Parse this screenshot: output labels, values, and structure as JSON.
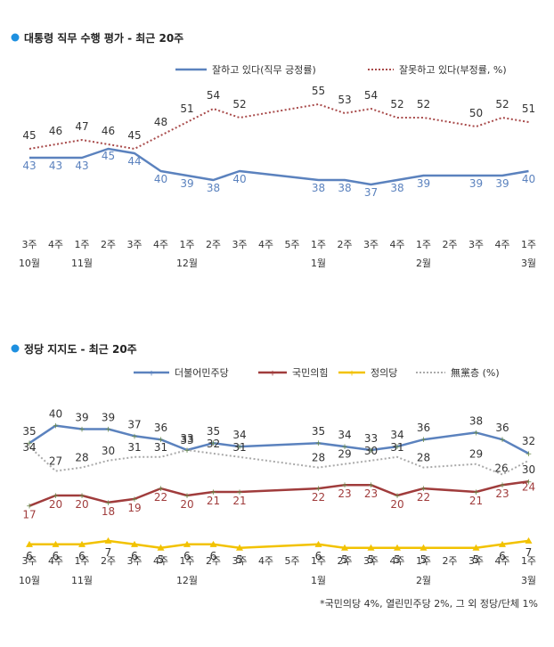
{
  "chart_data": [
    {
      "type": "line",
      "title": "대통령 직무 수행 평가 - 최근 20주",
      "x": [
        "3주 10월",
        "4주",
        "1주 11월",
        "2주",
        "3주",
        "4주",
        "1주 12월",
        "2주",
        "3주",
        "4주",
        "5주",
        "1주 1월",
        "2주",
        "3주",
        "4주",
        "1주 2월",
        "2주",
        "3주",
        "4주",
        "1주 3월"
      ],
      "tick_week": [
        "3주",
        "4주",
        "1주",
        "2주",
        "3주",
        "4주",
        "1주",
        "2주",
        "3주",
        "4주",
        "5주",
        "1주",
        "2주",
        "3주",
        "4주",
        "1주",
        "2주",
        "3주",
        "4주",
        "1주"
      ],
      "tick_month": [
        "10월",
        "",
        "11월",
        "",
        "",
        "",
        "12월",
        "",
        "",
        "",
        "",
        "1월",
        "",
        "",
        "",
        "2월",
        "",
        "",
        "",
        "3월"
      ],
      "series": [
        {
          "name": "잘하고 있다(직무 긍정률)",
          "color": "#5B82BE",
          "style": "solid",
          "values": [
            43,
            43,
            43,
            45,
            44,
            40,
            39,
            38,
            40,
            null,
            null,
            38,
            38,
            37,
            38,
            39,
            null,
            39,
            39,
            40
          ],
          "labels": [
            43,
            43,
            43,
            45,
            44,
            40,
            39,
            38,
            40,
            null,
            null,
            38,
            38,
            37,
            38,
            39,
            null,
            39,
            39,
            40
          ]
        },
        {
          "name": "잘못하고 있다(부정률, %)",
          "color": "#A84A4A",
          "style": "dotted",
          "values": [
            45,
            46,
            47,
            46,
            45,
            48,
            51,
            54,
            52,
            null,
            null,
            55,
            53,
            54,
            52,
            52,
            null,
            50,
            52,
            51
          ],
          "labels": [
            45,
            46,
            47,
            46,
            45,
            48,
            51,
            54,
            52,
            null,
            null,
            55,
            53,
            54,
            52,
            52,
            null,
            50,
            52,
            51
          ]
        }
      ],
      "legend": "top-right"
    },
    {
      "type": "line",
      "title": "정당 지지도 - 최근 20주",
      "x": [
        "3주 10월",
        "4주",
        "1주 11월",
        "2주",
        "3주",
        "4주",
        "1주 12월",
        "2주",
        "3주",
        "4주",
        "5주",
        "1주 1월",
        "2주",
        "3주",
        "4주",
        "1주 2월",
        "2주",
        "3주",
        "4주",
        "1주 3월"
      ],
      "tick_week": [
        "3주",
        "4주",
        "1주",
        "2주",
        "3주",
        "4주",
        "1주",
        "2주",
        "3주",
        "4주",
        "5주",
        "1주",
        "2주",
        "3주",
        "4주",
        "1주",
        "2주",
        "3주",
        "4주",
        "1주"
      ],
      "tick_month": [
        "10월",
        "",
        "11월",
        "",
        "",
        "",
        "12월",
        "",
        "",
        "",
        "",
        "1월",
        "",
        "",
        "",
        "2월",
        "",
        "",
        "",
        "3월"
      ],
      "series": [
        {
          "name": "더불어민주당",
          "color": "#5B82BE",
          "style": "solid",
          "values": [
            35,
            40,
            39,
            39,
            37,
            36,
            33,
            35,
            34,
            null,
            null,
            35,
            34,
            33,
            34,
            36,
            null,
            38,
            36,
            32
          ]
        },
        {
          "name": "국민의힘",
          "color": "#A03C3C",
          "style": "solid",
          "values": [
            17,
            20,
            20,
            18,
            19,
            22,
            20,
            21,
            21,
            null,
            null,
            22,
            23,
            23,
            20,
            22,
            null,
            21,
            23,
            24
          ]
        },
        {
          "name": "정의당",
          "color": "#F2C200",
          "style": "solid",
          "values": [
            6,
            6,
            6,
            7,
            6,
            5,
            6,
            6,
            5,
            null,
            null,
            6,
            5,
            5,
            5,
            5,
            null,
            5,
            6,
            7
          ]
        },
        {
          "name": "無黨층 (%)",
          "color": "#AAAAAA",
          "style": "dotted",
          "values": [
            34,
            27,
            28,
            30,
            31,
            31,
            33,
            32,
            31,
            null,
            null,
            28,
            29,
            30,
            31,
            28,
            null,
            29,
            26,
            30
          ]
        }
      ],
      "legend": "top-right",
      "note": "*국민의당 4%, 열린민주당 2%, 그 외 정당/단체 1%"
    }
  ]
}
